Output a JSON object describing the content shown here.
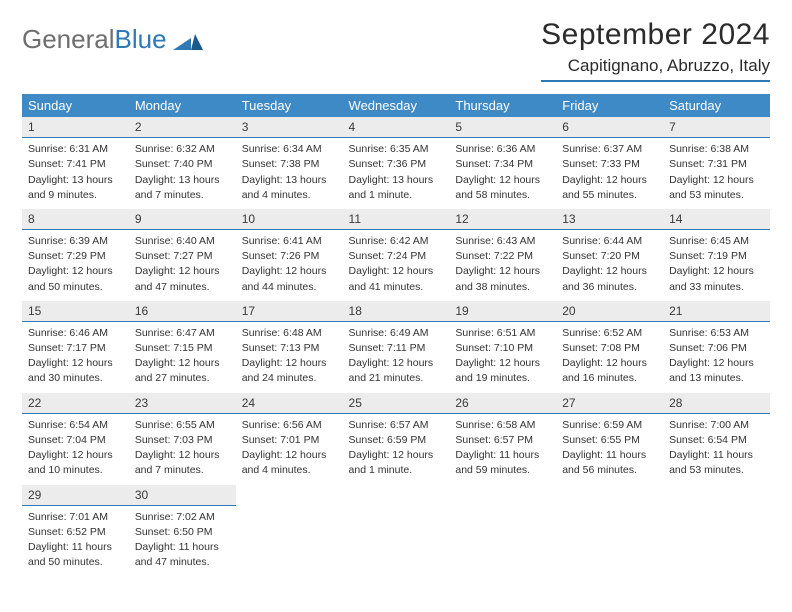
{
  "logo": {
    "part1": "General",
    "part2": "Blue"
  },
  "title": "September 2024",
  "location": "Capitignano, Abruzzo, Italy",
  "colors": {
    "header_bg": "#3e8ac6",
    "header_text": "#ffffff",
    "rule": "#2f79b6",
    "daynum_bg": "#ececec",
    "body_text": "#333333"
  },
  "weekdays": [
    "Sunday",
    "Monday",
    "Tuesday",
    "Wednesday",
    "Thursday",
    "Friday",
    "Saturday"
  ],
  "days": [
    {
      "n": "1",
      "sunrise": "Sunrise: 6:31 AM",
      "sunset": "Sunset: 7:41 PM",
      "day1": "Daylight: 13 hours",
      "day2": "and 9 minutes."
    },
    {
      "n": "2",
      "sunrise": "Sunrise: 6:32 AM",
      "sunset": "Sunset: 7:40 PM",
      "day1": "Daylight: 13 hours",
      "day2": "and 7 minutes."
    },
    {
      "n": "3",
      "sunrise": "Sunrise: 6:34 AM",
      "sunset": "Sunset: 7:38 PM",
      "day1": "Daylight: 13 hours",
      "day2": "and 4 minutes."
    },
    {
      "n": "4",
      "sunrise": "Sunrise: 6:35 AM",
      "sunset": "Sunset: 7:36 PM",
      "day1": "Daylight: 13 hours",
      "day2": "and 1 minute."
    },
    {
      "n": "5",
      "sunrise": "Sunrise: 6:36 AM",
      "sunset": "Sunset: 7:34 PM",
      "day1": "Daylight: 12 hours",
      "day2": "and 58 minutes."
    },
    {
      "n": "6",
      "sunrise": "Sunrise: 6:37 AM",
      "sunset": "Sunset: 7:33 PM",
      "day1": "Daylight: 12 hours",
      "day2": "and 55 minutes."
    },
    {
      "n": "7",
      "sunrise": "Sunrise: 6:38 AM",
      "sunset": "Sunset: 7:31 PM",
      "day1": "Daylight: 12 hours",
      "day2": "and 53 minutes."
    },
    {
      "n": "8",
      "sunrise": "Sunrise: 6:39 AM",
      "sunset": "Sunset: 7:29 PM",
      "day1": "Daylight: 12 hours",
      "day2": "and 50 minutes."
    },
    {
      "n": "9",
      "sunrise": "Sunrise: 6:40 AM",
      "sunset": "Sunset: 7:27 PM",
      "day1": "Daylight: 12 hours",
      "day2": "and 47 minutes."
    },
    {
      "n": "10",
      "sunrise": "Sunrise: 6:41 AM",
      "sunset": "Sunset: 7:26 PM",
      "day1": "Daylight: 12 hours",
      "day2": "and 44 minutes."
    },
    {
      "n": "11",
      "sunrise": "Sunrise: 6:42 AM",
      "sunset": "Sunset: 7:24 PM",
      "day1": "Daylight: 12 hours",
      "day2": "and 41 minutes."
    },
    {
      "n": "12",
      "sunrise": "Sunrise: 6:43 AM",
      "sunset": "Sunset: 7:22 PM",
      "day1": "Daylight: 12 hours",
      "day2": "and 38 minutes."
    },
    {
      "n": "13",
      "sunrise": "Sunrise: 6:44 AM",
      "sunset": "Sunset: 7:20 PM",
      "day1": "Daylight: 12 hours",
      "day2": "and 36 minutes."
    },
    {
      "n": "14",
      "sunrise": "Sunrise: 6:45 AM",
      "sunset": "Sunset: 7:19 PM",
      "day1": "Daylight: 12 hours",
      "day2": "and 33 minutes."
    },
    {
      "n": "15",
      "sunrise": "Sunrise: 6:46 AM",
      "sunset": "Sunset: 7:17 PM",
      "day1": "Daylight: 12 hours",
      "day2": "and 30 minutes."
    },
    {
      "n": "16",
      "sunrise": "Sunrise: 6:47 AM",
      "sunset": "Sunset: 7:15 PM",
      "day1": "Daylight: 12 hours",
      "day2": "and 27 minutes."
    },
    {
      "n": "17",
      "sunrise": "Sunrise: 6:48 AM",
      "sunset": "Sunset: 7:13 PM",
      "day1": "Daylight: 12 hours",
      "day2": "and 24 minutes."
    },
    {
      "n": "18",
      "sunrise": "Sunrise: 6:49 AM",
      "sunset": "Sunset: 7:11 PM",
      "day1": "Daylight: 12 hours",
      "day2": "and 21 minutes."
    },
    {
      "n": "19",
      "sunrise": "Sunrise: 6:51 AM",
      "sunset": "Sunset: 7:10 PM",
      "day1": "Daylight: 12 hours",
      "day2": "and 19 minutes."
    },
    {
      "n": "20",
      "sunrise": "Sunrise: 6:52 AM",
      "sunset": "Sunset: 7:08 PM",
      "day1": "Daylight: 12 hours",
      "day2": "and 16 minutes."
    },
    {
      "n": "21",
      "sunrise": "Sunrise: 6:53 AM",
      "sunset": "Sunset: 7:06 PM",
      "day1": "Daylight: 12 hours",
      "day2": "and 13 minutes."
    },
    {
      "n": "22",
      "sunrise": "Sunrise: 6:54 AM",
      "sunset": "Sunset: 7:04 PM",
      "day1": "Daylight: 12 hours",
      "day2": "and 10 minutes."
    },
    {
      "n": "23",
      "sunrise": "Sunrise: 6:55 AM",
      "sunset": "Sunset: 7:03 PM",
      "day1": "Daylight: 12 hours",
      "day2": "and 7 minutes."
    },
    {
      "n": "24",
      "sunrise": "Sunrise: 6:56 AM",
      "sunset": "Sunset: 7:01 PM",
      "day1": "Daylight: 12 hours",
      "day2": "and 4 minutes."
    },
    {
      "n": "25",
      "sunrise": "Sunrise: 6:57 AM",
      "sunset": "Sunset: 6:59 PM",
      "day1": "Daylight: 12 hours",
      "day2": "and 1 minute."
    },
    {
      "n": "26",
      "sunrise": "Sunrise: 6:58 AM",
      "sunset": "Sunset: 6:57 PM",
      "day1": "Daylight: 11 hours",
      "day2": "and 59 minutes."
    },
    {
      "n": "27",
      "sunrise": "Sunrise: 6:59 AM",
      "sunset": "Sunset: 6:55 PM",
      "day1": "Daylight: 11 hours",
      "day2": "and 56 minutes."
    },
    {
      "n": "28",
      "sunrise": "Sunrise: 7:00 AM",
      "sunset": "Sunset: 6:54 PM",
      "day1": "Daylight: 11 hours",
      "day2": "and 53 minutes."
    },
    {
      "n": "29",
      "sunrise": "Sunrise: 7:01 AM",
      "sunset": "Sunset: 6:52 PM",
      "day1": "Daylight: 11 hours",
      "day2": "and 50 minutes."
    },
    {
      "n": "30",
      "sunrise": "Sunrise: 7:02 AM",
      "sunset": "Sunset: 6:50 PM",
      "day1": "Daylight: 11 hours",
      "day2": "and 47 minutes."
    }
  ]
}
